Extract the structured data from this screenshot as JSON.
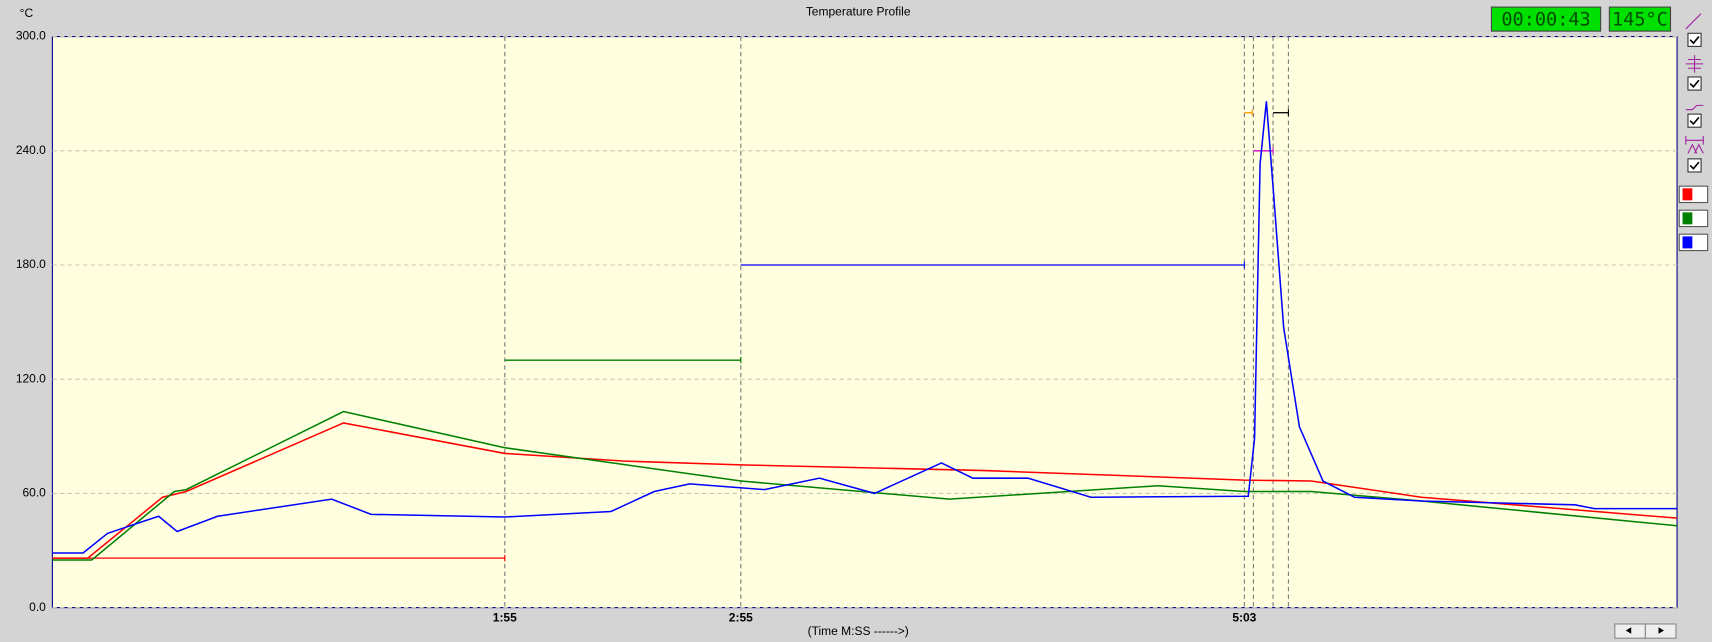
{
  "chart_data": {
    "type": "line",
    "title": "Temperature Profile",
    "ylabel": "°C",
    "xlabel": "(Time M:SS ------>)",
    "readouts": [
      "00:00:43",
      "145°C"
    ],
    "xlim": [
      0,
      413
    ],
    "ylim": [
      0,
      300
    ],
    "xticks": [
      {
        "value": 115,
        "label": "1:55"
      },
      {
        "value": 175,
        "label": "2:55"
      },
      {
        "value": 303,
        "label": "5:03"
      }
    ],
    "yticks": [
      {
        "value": 0,
        "label": "0.0"
      },
      {
        "value": 60,
        "label": "60.0"
      },
      {
        "value": 120,
        "label": "120.0"
      },
      {
        "value": 180,
        "label": "180.0"
      },
      {
        "value": 240,
        "label": "240.0"
      },
      {
        "value": 300,
        "label": "300.0"
      }
    ],
    "grid": true,
    "cursor_lines": [
      305.3,
      310.3,
      314.2
    ],
    "series": [
      {
        "color": "#ff0000",
        "x": [
          0,
          9,
          28,
          34,
          74,
          115,
          145,
          175,
          237,
          303,
          320,
          348,
          413
        ],
        "values": [
          26,
          26,
          58,
          61,
          97,
          81,
          77,
          75,
          72,
          67,
          66.5,
          58,
          47
        ]
      },
      {
        "color": "#008000",
        "x": [
          0,
          10,
          31,
          34,
          74,
          115,
          175,
          228,
          281,
          303,
          320,
          348,
          413
        ],
        "values": [
          25,
          25,
          61,
          62,
          103,
          84,
          66.5,
          57,
          64,
          61,
          61,
          56,
          43
        ]
      },
      {
        "color": "#0000ff",
        "x": [
          0,
          7.8,
          14,
          27,
          31.7,
          42,
          71,
          81,
          115,
          142,
          153,
          162,
          181,
          195,
          209,
          226,
          234,
          248,
          264,
          304,
          305.6,
          307,
          308.6,
          310.3,
          313,
          317,
          323,
          331,
          348,
          387,
          392,
          413
        ],
        "values": [
          28.7,
          28.7,
          39,
          48,
          40,
          48,
          57,
          49,
          47.6,
          50.5,
          61,
          65,
          62,
          68,
          60,
          76,
          68,
          68,
          58,
          58.5,
          89,
          233,
          266,
          221,
          147,
          95,
          66.5,
          58,
          56,
          54,
          52,
          52
        ]
      }
    ],
    "limit_segments": [
      {
        "color": "#ff0000",
        "value": 26,
        "x": [
          0,
          115
        ]
      },
      {
        "color": "#008000",
        "value": 130,
        "x": [
          115,
          175
        ]
      },
      {
        "color": "#0000ff",
        "value": 180,
        "x": [
          175,
          303
        ]
      },
      {
        "color": "#ff9900",
        "value": 260,
        "x": [
          303,
          305
        ]
      },
      {
        "color": "#cc00cc",
        "value": 240,
        "x": [
          305.3,
          310.3
        ]
      },
      {
        "color": "#000000",
        "value": 260,
        "x": [
          310.3,
          314.2
        ]
      }
    ]
  }
}
